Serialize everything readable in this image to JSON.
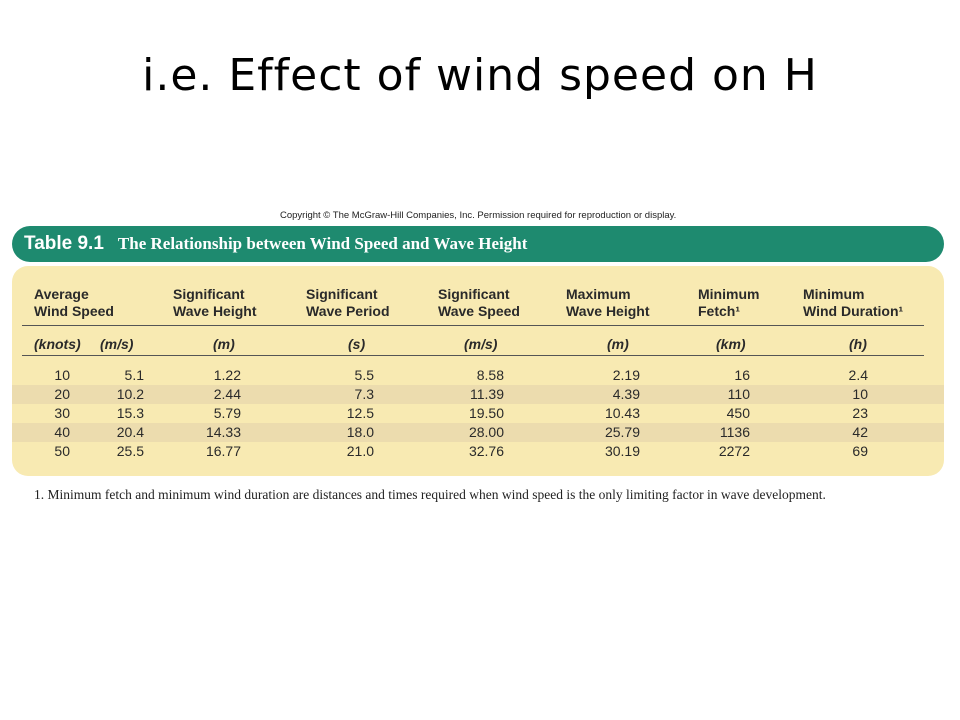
{
  "slide": {
    "title": "i.e. Effect of wind speed on H"
  },
  "copyright": "Copyright © The McGraw-Hill Companies, Inc. Permission required for reproduction or display.",
  "table": {
    "label": "Table 9.1",
    "caption": "The Relationship between Wind Speed and Wave Height",
    "headers": [
      {
        "line1": "Average",
        "line2": "Wind Speed"
      },
      {
        "line1": "Significant",
        "line2": "Wave Height"
      },
      {
        "line1": "Significant",
        "line2": "Wave Period"
      },
      {
        "line1": "Significant",
        "line2": "Wave Speed"
      },
      {
        "line1": "Maximum",
        "line2": "Wave Height"
      },
      {
        "line1": "Minimum",
        "line2": "Fetch¹"
      },
      {
        "line1": "Minimum",
        "line2": "Wind Duration¹"
      }
    ],
    "units": [
      "(knots)",
      "(m/s)",
      "(m)",
      "(s)",
      "(m/s)",
      "(m)",
      "(km)",
      "(h)"
    ],
    "rows": [
      [
        "10",
        "5.1",
        "1.22",
        "5.5",
        "8.58",
        "2.19",
        "16",
        "2.4"
      ],
      [
        "20",
        "10.2",
        "2.44",
        "7.3",
        "11.39",
        "4.39",
        "110",
        "10"
      ],
      [
        "30",
        "15.3",
        "5.79",
        "12.5",
        "19.50",
        "10.43",
        "450",
        "23"
      ],
      [
        "40",
        "20.4",
        "14.33",
        "18.0",
        "28.00",
        "25.79",
        "1136",
        "42"
      ],
      [
        "50",
        "25.5",
        "16.77",
        "21.0",
        "32.76",
        "30.19",
        "2272",
        "69"
      ]
    ],
    "footnote": "1. Minimum fetch and minimum wind duration are distances and times required when wind speed is the only limiting factor in wave development.",
    "colors": {
      "banner": "#1e8a6f",
      "panel": "#f8eab2",
      "stripe": "#ecdcae"
    }
  }
}
